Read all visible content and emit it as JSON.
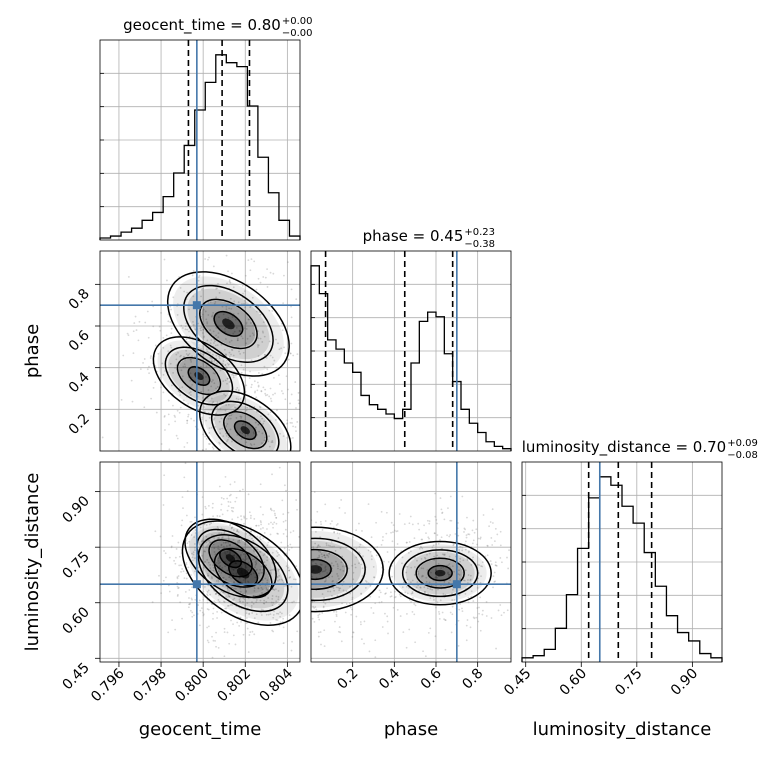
{
  "chart_data": {
    "type": "corner",
    "colors": {
      "truth": "#4477aa",
      "hist": "#000000",
      "samples": "#7f7f7f"
    },
    "parameters": [
      "geocent_time",
      "phase",
      "luminosity_distance"
    ],
    "truths": {
      "geocent_time": 0.7997,
      "phase": 0.7,
      "luminosity_distance": 0.65
    },
    "axes": {
      "geocent_time": {
        "lim": [
          0.7951,
          0.8046
        ],
        "ticks": [
          0.796,
          0.798,
          0.8,
          0.802,
          0.804
        ],
        "tick_labels": [
          "0.796",
          "0.798",
          "0.800",
          "0.802",
          "0.804"
        ],
        "label": "geocent_time"
      },
      "phase": {
        "lim": [
          0.0,
          0.96
        ],
        "ticks": [
          0.2,
          0.4,
          0.6,
          0.8
        ],
        "tick_labels": [
          "0.2",
          "0.4",
          "0.6",
          "0.8"
        ],
        "label": "phase"
      },
      "luminosity_distance": {
        "lim": [
          0.44,
          0.98
        ],
        "ticks": [
          0.45,
          0.6,
          0.75,
          0.9
        ],
        "tick_labels": [
          "0.45",
          "0.60",
          "0.75",
          "0.90"
        ],
        "label": "luminosity_distance"
      }
    },
    "titles": [
      {
        "param": "geocent_time",
        "text": "geocent_time = 0.80",
        "plus": "+0.00",
        "minus": "−0.00"
      },
      {
        "param": "phase",
        "text": "phase = 0.45",
        "plus": "+0.23",
        "minus": "−0.38"
      },
      {
        "param": "luminosity_distance",
        "text": "luminosity_distance = 0.70",
        "plus": "+0.09",
        "minus": "−0.08"
      }
    ],
    "histograms": {
      "geocent_time": {
        "edges": [
          0.7951,
          0.7956,
          0.7961,
          0.7966,
          0.7971,
          0.7976,
          0.7981,
          0.7986,
          0.7991,
          0.7996,
          0.8001,
          0.8006,
          0.8011,
          0.8016,
          0.8021,
          0.8026,
          0.8031,
          0.8036,
          0.8041,
          0.8046
        ],
        "counts": [
          0.5,
          1,
          2,
          3,
          5,
          7,
          11,
          17,
          24,
          33,
          40,
          47,
          45,
          44,
          34,
          21,
          12,
          5,
          1
        ]
      },
      "phase": {
        "edges": [
          0.0,
          0.04,
          0.08,
          0.12,
          0.16,
          0.2,
          0.24,
          0.28,
          0.32,
          0.36,
          0.4,
          0.44,
          0.48,
          0.52,
          0.56,
          0.6,
          0.64,
          0.68,
          0.72,
          0.76,
          0.8,
          0.84,
          0.88,
          0.92,
          0.96
        ],
        "counts": [
          40,
          34,
          24,
          22,
          19,
          17,
          12,
          10,
          9,
          8,
          7,
          9,
          19,
          28,
          30,
          29,
          21,
          15,
          9,
          6,
          4,
          2,
          1,
          0.5
        ]
      },
      "luminosity_distance": {
        "edges": [
          0.44,
          0.47,
          0.5,
          0.53,
          0.56,
          0.59,
          0.62,
          0.65,
          0.68,
          0.71,
          0.74,
          0.77,
          0.8,
          0.83,
          0.86,
          0.89,
          0.92,
          0.95,
          0.98
        ],
        "counts": [
          1,
          1.5,
          3,
          8,
          16,
          27,
          39,
          44,
          42,
          37,
          33,
          26,
          18,
          11,
          7,
          5,
          2,
          1
        ]
      }
    },
    "quantile_lines": {
      "geocent_time": [
        0.7993,
        0.8009,
        0.8022
      ],
      "phase": [
        0.07,
        0.45,
        0.68
      ],
      "luminosity_distance": [
        0.62,
        0.7,
        0.79
      ]
    },
    "density_peaks": [
      {
        "x": "geocent_time",
        "y": "phase",
        "centers": [
          [
            0.8012,
            0.61
          ],
          [
            0.802,
            0.1
          ],
          [
            0.7998,
            0.36
          ]
        ]
      },
      {
        "x": "geocent_time",
        "y": "luminosity_distance",
        "centers": [
          [
            0.8019,
            0.68
          ],
          [
            0.8013,
            0.72
          ]
        ]
      },
      {
        "x": "phase",
        "y": "luminosity_distance",
        "centers": [
          [
            0.02,
            0.69
          ],
          [
            0.62,
            0.68
          ]
        ]
      }
    ],
    "grid": true
  }
}
